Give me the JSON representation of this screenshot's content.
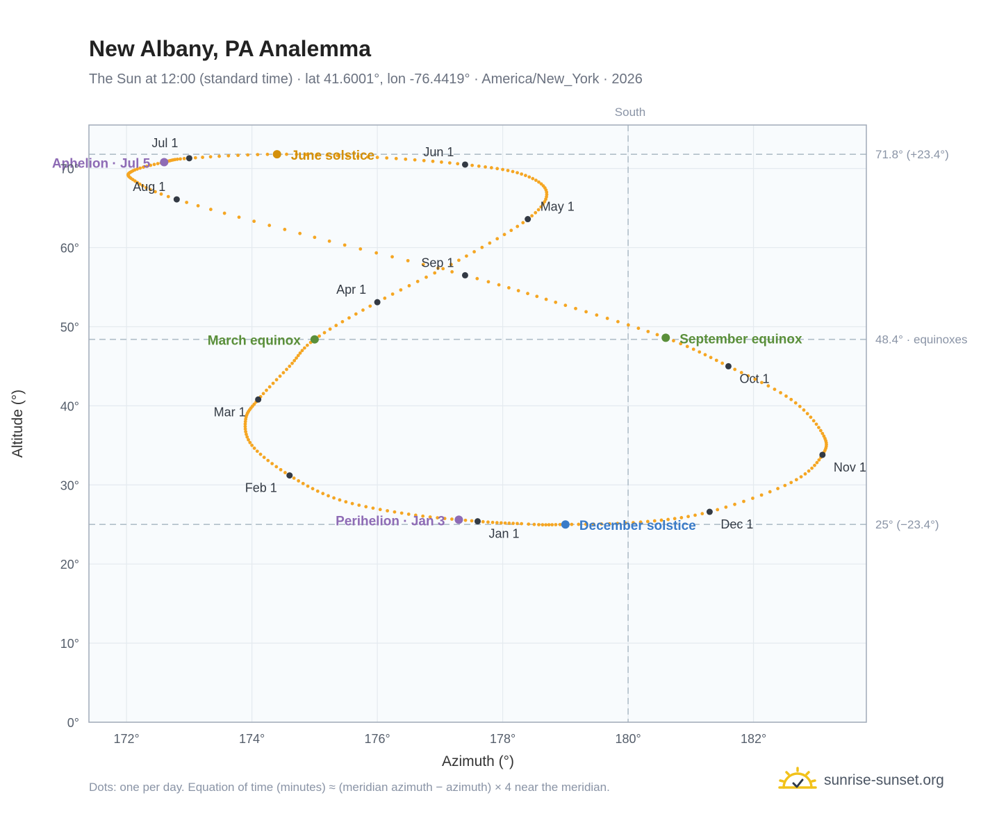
{
  "header": {
    "title": "New Albany, PA Analemma",
    "subtitle": "The Sun at 12:00 (standard time) · lat 41.6001°, lon -76.4419° · America/New_York · 2026"
  },
  "footnote": "Dots: one per day. Equation of time (minutes) ≈ (meridian azimuth − azimuth) × 4 near the meridian.",
  "brand": {
    "name": "sunrise-sunset.org",
    "logo_icon": "sun-check-icon"
  },
  "colors": {
    "curve": "#f5a623",
    "month_marker": "#333a44",
    "solstice_june": "#d4900a",
    "equinox": "#5a8f3a",
    "solstice_december": "#3a7bc8",
    "perihelion_aphelion": "#8e6bb5",
    "guide_line": "#b0bec8",
    "plot_background": "#f8fbfd"
  },
  "chart_data": {
    "type": "scatter",
    "title": "New Albany, PA Analemma",
    "xlabel": "Azimuth (°)",
    "ylabel": "Altitude (°)",
    "xlim": [
      171.4,
      183.8
    ],
    "ylim": [
      0,
      75.5
    ],
    "xticks": [
      172,
      174,
      176,
      178,
      180,
      182
    ],
    "yticks": [
      0,
      10,
      20,
      30,
      40,
      50,
      60,
      70
    ],
    "tick_suffix": "°",
    "grid": true,
    "meridian": {
      "x": 180,
      "label": "South"
    },
    "reference_lines": [
      {
        "y": 71.8,
        "label": "71.8° (+23.4°)"
      },
      {
        "y": 48.4,
        "label": "48.4° · equinoxes"
      },
      {
        "y": 25.0,
        "label": "25° (−23.4°)"
      }
    ],
    "curve_points": [
      {
        "x": 177.6,
        "y": 25.4
      },
      {
        "x": 176.5,
        "y": 26.3
      },
      {
        "x": 175.4,
        "y": 28.1
      },
      {
        "x": 174.6,
        "y": 31.2
      },
      {
        "x": 174.0,
        "y": 35.0
      },
      {
        "x": 173.9,
        "y": 38.3
      },
      {
        "x": 174.1,
        "y": 40.8
      },
      {
        "x": 174.6,
        "y": 45.0
      },
      {
        "x": 175.0,
        "y": 48.4
      },
      {
        "x": 176.0,
        "y": 53.1
      },
      {
        "x": 177.3,
        "y": 58.4
      },
      {
        "x": 178.4,
        "y": 63.6
      },
      {
        "x": 178.7,
        "y": 67.0
      },
      {
        "x": 178.3,
        "y": 69.3
      },
      {
        "x": 177.4,
        "y": 70.5
      },
      {
        "x": 176.0,
        "y": 71.4
      },
      {
        "x": 174.4,
        "y": 71.8
      },
      {
        "x": 173.0,
        "y": 71.3
      },
      {
        "x": 172.6,
        "y": 70.8
      },
      {
        "x": 172.1,
        "y": 69.7
      },
      {
        "x": 172.1,
        "y": 68.6
      },
      {
        "x": 172.8,
        "y": 66.1
      },
      {
        "x": 175.0,
        "y": 61.3
      },
      {
        "x": 177.4,
        "y": 56.5
      },
      {
        "x": 179.0,
        "y": 52.7
      },
      {
        "x": 180.6,
        "y": 48.6
      },
      {
        "x": 181.6,
        "y": 45.0
      },
      {
        "x": 182.6,
        "y": 40.8
      },
      {
        "x": 183.1,
        "y": 36.5
      },
      {
        "x": 183.1,
        "y": 33.8
      },
      {
        "x": 182.6,
        "y": 30.3
      },
      {
        "x": 181.3,
        "y": 26.6
      },
      {
        "x": 180.2,
        "y": 25.3
      },
      {
        "x": 179.0,
        "y": 25.0
      },
      {
        "x": 178.3,
        "y": 25.1
      },
      {
        "x": 177.6,
        "y": 25.4
      }
    ],
    "months": [
      {
        "label": "Jan 1",
        "x": 177.6,
        "y": 25.4
      },
      {
        "label": "Feb 1",
        "x": 174.6,
        "y": 31.2
      },
      {
        "label": "Mar 1",
        "x": 174.1,
        "y": 40.8
      },
      {
        "label": "Apr 1",
        "x": 176.0,
        "y": 53.1
      },
      {
        "label": "May 1",
        "x": 178.4,
        "y": 63.6
      },
      {
        "label": "Jun 1",
        "x": 177.4,
        "y": 70.5
      },
      {
        "label": "Jul 1",
        "x": 173.0,
        "y": 71.3
      },
      {
        "label": "Aug 1",
        "x": 172.8,
        "y": 66.1
      },
      {
        "label": "Sep 1",
        "x": 177.4,
        "y": 56.5
      },
      {
        "label": "Oct 1",
        "x": 181.6,
        "y": 45.0
      },
      {
        "label": "Nov 1",
        "x": 183.1,
        "y": 33.8
      },
      {
        "label": "Dec 1",
        "x": 181.3,
        "y": 26.6
      }
    ],
    "events": [
      {
        "label": "June solstice",
        "x": 174.4,
        "y": 71.8,
        "kind": "solstice_june"
      },
      {
        "label": "March equinox",
        "x": 175.0,
        "y": 48.4,
        "kind": "equinox"
      },
      {
        "label": "September equinox",
        "x": 180.6,
        "y": 48.6,
        "kind": "equinox"
      },
      {
        "label": "December solstice",
        "x": 179.0,
        "y": 25.0,
        "kind": "solstice_december"
      },
      {
        "label": "Aphelion · Jul 5",
        "x": 172.6,
        "y": 70.8,
        "kind": "perihelion_aphelion"
      },
      {
        "label": "Perihelion · Jan 3",
        "x": 177.3,
        "y": 25.6,
        "kind": "perihelion_aphelion"
      }
    ]
  }
}
